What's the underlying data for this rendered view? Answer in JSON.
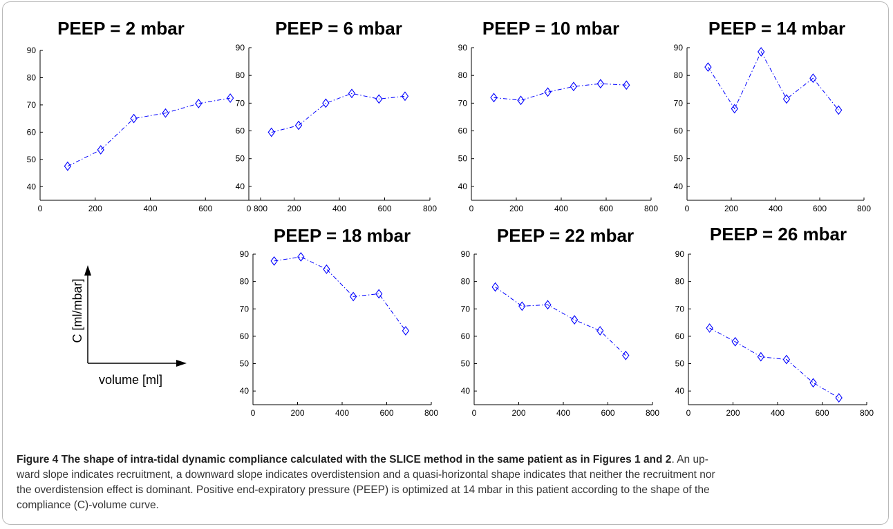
{
  "chart_data": [
    {
      "type": "line",
      "title": "PEEP = 2 mbar",
      "x": [
        100,
        220,
        340,
        455,
        575,
        690
      ],
      "y": [
        47.5,
        53.5,
        65,
        67,
        70.5,
        72.5
      ],
      "xlim": [
        0,
        800
      ],
      "ylim": [
        35,
        90
      ],
      "xticks": [
        "0",
        "200",
        "400",
        "600",
        "800"
      ],
      "yticks": [
        "40",
        "50",
        "60",
        "70",
        "80",
        "90"
      ]
    },
    {
      "type": "line",
      "title": "PEEP = 6 mbar",
      "x": [
        100,
        220,
        340,
        455,
        575,
        690
      ],
      "y": [
        59.5,
        62,
        70,
        73.5,
        71.5,
        72.5
      ],
      "xlim": [
        0,
        800
      ],
      "ylim": [
        35,
        90
      ],
      "xticks": [
        "0",
        "200",
        "400",
        "600",
        "800"
      ],
      "yticks": [
        "40",
        "50",
        "60",
        "70",
        "80",
        "90"
      ]
    },
    {
      "type": "line",
      "title": "PEEP = 10 mbar",
      "x": [
        100,
        220,
        340,
        455,
        575,
        690
      ],
      "y": [
        72,
        71,
        74,
        76,
        77,
        76.5
      ],
      "xlim": [
        0,
        800
      ],
      "ylim": [
        35,
        90
      ],
      "xticks": [
        "0",
        "200",
        "400",
        "600",
        "800"
      ],
      "yticks": [
        "40",
        "50",
        "60",
        "70",
        "80",
        "90"
      ]
    },
    {
      "type": "line",
      "title": "PEEP = 14 mbar",
      "x": [
        95,
        215,
        335,
        450,
        570,
        685
      ],
      "y": [
        83,
        68,
        88.5,
        71.5,
        79,
        67.5
      ],
      "xlim": [
        0,
        800
      ],
      "ylim": [
        35,
        90
      ],
      "xticks": [
        "0",
        "200",
        "400",
        "600",
        "800"
      ],
      "yticks": [
        "40",
        "50",
        "60",
        "70",
        "80",
        "90"
      ]
    },
    {
      "type": "line",
      "title": "PEEP = 18 mbar",
      "x": [
        95,
        215,
        330,
        450,
        565,
        685
      ],
      "y": [
        87.5,
        89,
        84.5,
        74.5,
        75.5,
        62
      ],
      "xlim": [
        0,
        800
      ],
      "ylim": [
        35,
        90
      ],
      "xticks": [
        "0",
        "200",
        "400",
        "600",
        "800"
      ],
      "yticks": [
        "40",
        "50",
        "60",
        "70",
        "80",
        "90"
      ]
    },
    {
      "type": "line",
      "title": "PEEP = 22 mbar",
      "x": [
        95,
        215,
        330,
        450,
        565,
        680
      ],
      "y": [
        78,
        71,
        71.5,
        66,
        62,
        53
      ],
      "xlim": [
        0,
        800
      ],
      "ylim": [
        35,
        90
      ],
      "xticks": [
        "0",
        "200",
        "400",
        "600",
        "800"
      ],
      "yticks": [
        "40",
        "50",
        "60",
        "70",
        "80",
        "90"
      ]
    },
    {
      "type": "line",
      "title": "PEEP = 26 mbar",
      "x": [
        95,
        210,
        325,
        440,
        560,
        675
      ],
      "y": [
        63,
        58,
        52.5,
        51.5,
        43,
        37.5
      ],
      "xlim": [
        0,
        800
      ],
      "ylim": [
        35,
        90
      ],
      "xticks": [
        "0",
        "200",
        "400",
        "600",
        "800"
      ],
      "yticks": [
        "40",
        "50",
        "60",
        "70",
        "80",
        "90"
      ]
    }
  ],
  "legend_axes": {
    "ylabel": "C [ml/mbar]",
    "xlabel": "volume [ml]"
  },
  "series_color": "#0000ff",
  "marker": "diamond",
  "caption": {
    "bold": "Figure 4 The shape of intra-tidal dynamic compliance calculated with the SLICE method in the same patient as in Figures 1 and 2",
    "lines": [
      ". An up-",
      "ward slope indicates recruitment, a downward slope indicates overdistension and a quasi-horizontal shape indicates that neither the recruitment nor",
      "the overdistension effect is dominant. Positive end-expiratory pressure (PEEP) is optimized at 14 mbar in this patient according to the shape of the",
      "compliance (C)-volume curve."
    ]
  }
}
